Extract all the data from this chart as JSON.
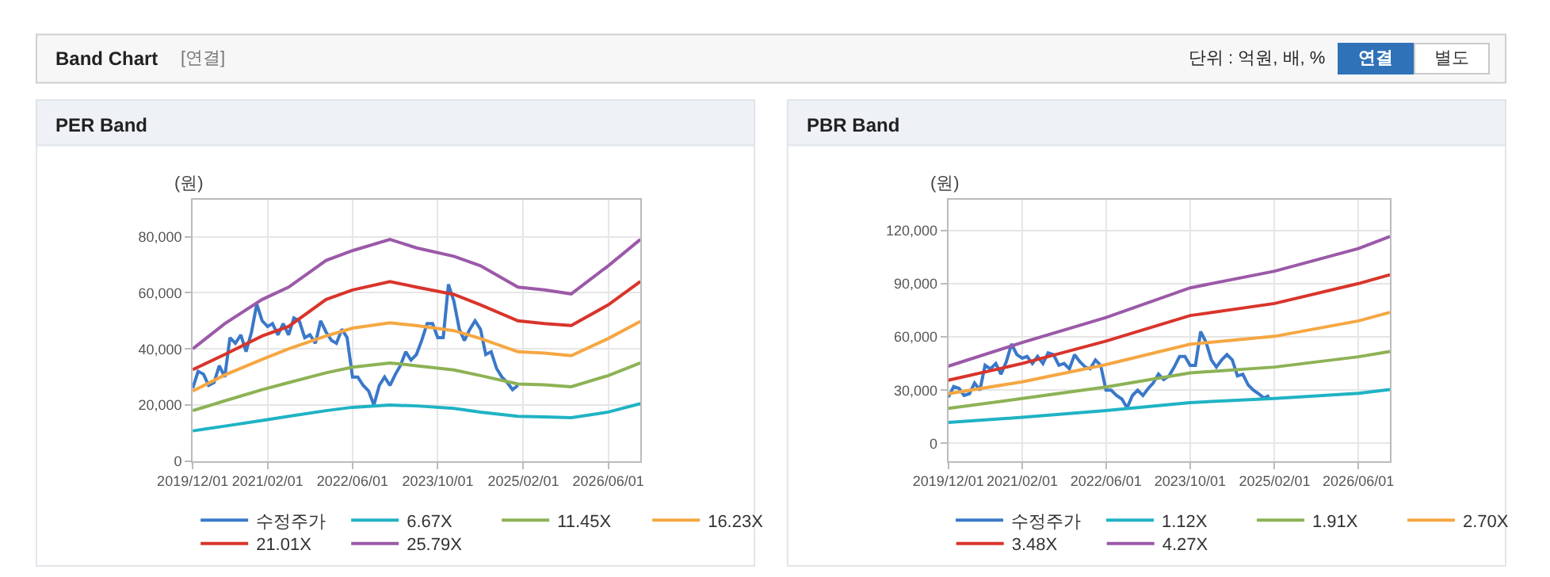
{
  "chart_data": [
    {
      "type": "line",
      "title": "PER Band",
      "ylabel": "(원)",
      "annotations": [
        "Band Chart",
        "[연결]",
        "단위 : 억원, 배, %",
        "연결",
        "별도"
      ],
      "x": [
        "2019-12-01",
        "2020-06-01",
        "2021-01-01",
        "2021-06-01",
        "2022-01-01",
        "2022-06-01",
        "2023-01-01",
        "2023-06-01",
        "2024-01-01",
        "2024-06-01",
        "2025-01-01",
        "2025-06-01",
        "2025-11-01",
        "2026-06-01",
        "2026-12-01"
      ],
      "series": [
        {
          "name": "수정주가",
          "color": "#3a78c9",
          "x": [
            "2019-12-01",
            "2020-01-01",
            "2020-02-01",
            "2020-03-01",
            "2020-04-01",
            "2020-05-01",
            "2020-06-01",
            "2020-07-01",
            "2020-08-01",
            "2020-09-01",
            "2020-10-01",
            "2020-11-01",
            "2020-12-01",
            "2021-01-01",
            "2021-02-01",
            "2021-03-01",
            "2021-04-01",
            "2021-05-01",
            "2021-06-01",
            "2021-07-01",
            "2021-08-01",
            "2021-09-01",
            "2021-10-01",
            "2021-11-01",
            "2021-12-01",
            "2022-01-01",
            "2022-02-01",
            "2022-03-01",
            "2022-04-01",
            "2022-05-01",
            "2022-06-01",
            "2022-07-01",
            "2022-08-01",
            "2022-09-01",
            "2022-10-01",
            "2022-11-01",
            "2022-12-01",
            "2023-01-01",
            "2023-02-01",
            "2023-03-01",
            "2023-04-01",
            "2023-05-01",
            "2023-06-01",
            "2023-07-01",
            "2023-08-01",
            "2023-09-01",
            "2023-10-01",
            "2023-11-01",
            "2023-12-01",
            "2024-01-01",
            "2024-02-01",
            "2024-03-01",
            "2024-04-01",
            "2024-05-01",
            "2024-06-01",
            "2024-07-01",
            "2024-08-01",
            "2024-09-01",
            "2024-10-01",
            "2024-11-01",
            "2024-12-01",
            "2025-01-01"
          ],
          "values": [
            26000,
            32000,
            31000,
            27000,
            28000,
            34000,
            30000,
            44000,
            42000,
            45000,
            39000,
            46000,
            56000,
            50000,
            48000,
            49000,
            45000,
            49000,
            45000,
            51000,
            50000,
            44000,
            45000,
            42000,
            50000,
            46000,
            43000,
            42000,
            47000,
            44000,
            30000,
            30000,
            27000,
            25000,
            20000,
            27000,
            30000,
            27000,
            31000,
            34000,
            39000,
            36000,
            38000,
            43000,
            49000,
            49000,
            44000,
            44000,
            63000,
            57000,
            47000,
            43000,
            47000,
            50000,
            47000,
            38000,
            39000,
            33000,
            30000,
            28000,
            25500,
            27000
          ]
        },
        {
          "name": "6.67X",
          "color": "#1fb3c4",
          "values": [
            10800,
            12500,
            14500,
            16000,
            18000,
            19200,
            20000,
            19700,
            18800,
            17500,
            16000,
            15800,
            15500,
            17500,
            20500
          ]
        },
        {
          "name": "11.45X",
          "color": "#8db255",
          "values": [
            18000,
            21500,
            25500,
            28000,
            31500,
            33500,
            35000,
            34000,
            32500,
            30500,
            27500,
            27200,
            26500,
            30500,
            35000
          ]
        },
        {
          "name": "16.23X",
          "color": "#f5a742",
          "values": [
            25000,
            30700,
            36300,
            40000,
            44600,
            47400,
            49300,
            48300,
            46500,
            43700,
            39000,
            38500,
            37600,
            43700,
            49800
          ]
        },
        {
          "name": "21.01X",
          "color": "#d9342b",
          "values": [
            32600,
            38000,
            44600,
            48000,
            57600,
            61000,
            64000,
            62000,
            59400,
            55700,
            50000,
            49000,
            48300,
            55700,
            64000
          ]
        },
        {
          "name": "25.79X",
          "color": "#9b59a8",
          "values": [
            40000,
            49000,
            57600,
            62000,
            71500,
            75000,
            79000,
            76000,
            73000,
            69600,
            62000,
            61000,
            59600,
            69600,
            79000
          ]
        }
      ],
      "xlim": [
        "2019-12-01",
        "2026-12-01"
      ],
      "xticks": [
        {
          "value": "2019-12-01",
          "label": "2019/12/01"
        },
        {
          "value": "2021-02-01",
          "label": "2021/02/01"
        },
        {
          "value": "2022-06-01",
          "label": "2022/06/01"
        },
        {
          "value": "2023-10-01",
          "label": "2023/10/01"
        },
        {
          "value": "2025-02-01",
          "label": "2025/02/01"
        },
        {
          "value": "2026-06-01",
          "label": "2026/06/01"
        }
      ],
      "ylim": [
        0,
        93000
      ],
      "yticks": [
        0,
        {
          "value": 20000,
          "label": "20,000"
        },
        {
          "value": 40000,
          "label": "40,000"
        },
        {
          "value": 60000,
          "label": "60,000"
        },
        {
          "value": 80000,
          "label": "80,000"
        }
      ],
      "grid": true,
      "legend": "bottom",
      "marker": "none",
      "line_style": "solid"
    },
    {
      "type": "line",
      "title": "PBR Band",
      "ylabel": "(원)",
      "x": [
        "2019-12-01",
        "2021-02-01",
        "2022-06-01",
        "2023-10-01",
        "2025-02-01",
        "2026-06-01",
        "2026-12-01"
      ],
      "series": [
        {
          "name": "수정주가",
          "color": "#3a78c9",
          "x": [
            "2019-12-01",
            "2020-01-01",
            "2020-02-01",
            "2020-03-01",
            "2020-04-01",
            "2020-05-01",
            "2020-06-01",
            "2020-07-01",
            "2020-08-01",
            "2020-09-01",
            "2020-10-01",
            "2020-11-01",
            "2020-12-01",
            "2021-01-01",
            "2021-02-01",
            "2021-03-01",
            "2021-04-01",
            "2021-05-01",
            "2021-06-01",
            "2021-07-01",
            "2021-08-01",
            "2021-09-01",
            "2021-10-01",
            "2021-11-01",
            "2021-12-01",
            "2022-01-01",
            "2022-02-01",
            "2022-03-01",
            "2022-04-01",
            "2022-05-01",
            "2022-06-01",
            "2022-07-01",
            "2022-08-01",
            "2022-09-01",
            "2022-10-01",
            "2022-11-01",
            "2022-12-01",
            "2023-01-01",
            "2023-02-01",
            "2023-03-01",
            "2023-04-01",
            "2023-05-01",
            "2023-06-01",
            "2023-07-01",
            "2023-08-01",
            "2023-09-01",
            "2023-10-01",
            "2023-11-01",
            "2023-12-01",
            "2024-01-01",
            "2024-02-01",
            "2024-03-01",
            "2024-04-01",
            "2024-05-01",
            "2024-06-01",
            "2024-07-01",
            "2024-08-01",
            "2024-09-01",
            "2024-10-01",
            "2024-11-01",
            "2024-12-01",
            "2025-01-01"
          ],
          "values": [
            26000,
            32000,
            31000,
            27000,
            28000,
            34000,
            30000,
            44000,
            42000,
            45000,
            39000,
            46000,
            56000,
            50000,
            48000,
            49000,
            45000,
            49000,
            45000,
            51000,
            50000,
            44000,
            45000,
            42000,
            50000,
            46000,
            43000,
            42000,
            47000,
            44000,
            30000,
            30000,
            27000,
            25000,
            20000,
            27000,
            30000,
            27000,
            31000,
            34000,
            39000,
            36000,
            38000,
            43000,
            49000,
            49000,
            44000,
            44000,
            63000,
            57000,
            47000,
            43000,
            47000,
            50000,
            47000,
            38000,
            39000,
            33000,
            30000,
            28000,
            25500,
            27000
          ]
        },
        {
          "name": "1.12X",
          "color": "#1fb3c4",
          "values": [
            11800,
            14700,
            18500,
            23000,
            25300,
            28200,
            30300
          ]
        },
        {
          "name": "1.91X",
          "color": "#8db255",
          "values": [
            19700,
            25300,
            31800,
            39700,
            43000,
            48800,
            51800
          ]
        },
        {
          "name": "2.70X",
          "color": "#f5a742",
          "values": [
            28000,
            34700,
            44400,
            55900,
            60300,
            69000,
            73800
          ]
        },
        {
          "name": "3.48X",
          "color": "#d9342b",
          "values": [
            35600,
            45000,
            57600,
            72000,
            78800,
            90000,
            95000
          ]
        },
        {
          "name": "4.27X",
          "color": "#9b59a8",
          "values": [
            43500,
            56800,
            70900,
            87600,
            97000,
            109700,
            116500
          ]
        }
      ],
      "xlim": [
        "2019-12-01",
        "2026-12-01"
      ],
      "xticks": [
        {
          "value": "2019-12-01",
          "label": "2019/12/01"
        },
        {
          "value": "2021-02-01",
          "label": "2021/02/01"
        },
        {
          "value": "2022-06-01",
          "label": "2022/06/01"
        },
        {
          "value": "2023-10-01",
          "label": "2023/10/01"
        },
        {
          "value": "2025-02-01",
          "label": "2025/02/01"
        },
        {
          "value": "2026-06-01",
          "label": "2026/06/01"
        }
      ],
      "ylim": [
        -10000,
        137000
      ],
      "yticks": [
        0,
        {
          "value": 30000,
          "label": "30,000"
        },
        {
          "value": 60000,
          "label": "60,000"
        },
        {
          "value": 90000,
          "label": "90,000"
        },
        {
          "value": 120000,
          "label": "120,000"
        }
      ],
      "grid": true,
      "legend": "bottom",
      "marker": "none",
      "line_style": "solid"
    }
  ]
}
